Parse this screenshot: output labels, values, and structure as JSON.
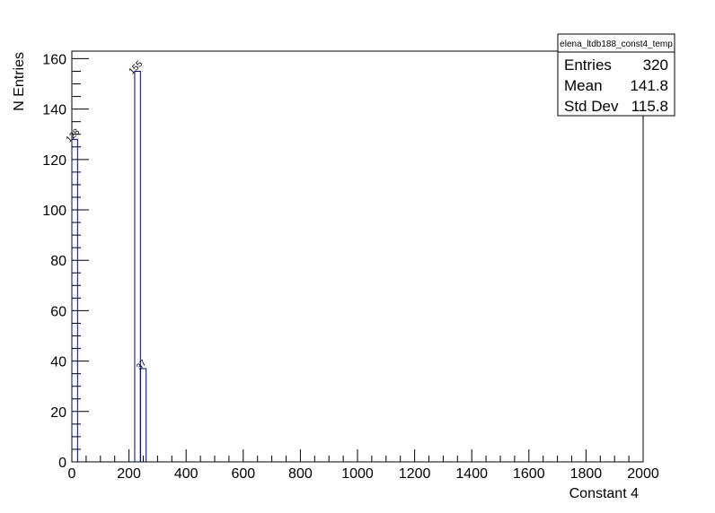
{
  "chart_data": {
    "type": "bar",
    "title": "",
    "xlabel": "Constant 4",
    "ylabel": "N Entries",
    "xlim": [
      0,
      2000
    ],
    "ylim": [
      0,
      163
    ],
    "x_ticks": [
      0,
      200,
      400,
      600,
      800,
      1000,
      1200,
      1400,
      1600,
      1800,
      2000
    ],
    "y_ticks": [
      0,
      20,
      40,
      60,
      80,
      100,
      120,
      140,
      160
    ],
    "bin_width": 20,
    "bins": [
      {
        "x_low": 0,
        "x_high": 20,
        "value": 128
      },
      {
        "x_low": 220,
        "x_high": 240,
        "value": 155
      },
      {
        "x_low": 240,
        "x_high": 260,
        "value": 37
      }
    ],
    "bar_labels": [
      "128",
      "155",
      "37"
    ],
    "bar_color": "#000099",
    "stats_box": {
      "title": "elena_ltdb188_const4_temp",
      "rows": [
        {
          "label": "Entries",
          "value": "320"
        },
        {
          "label": "Mean",
          "value": "141.8"
        },
        {
          "label": "Std Dev",
          "value": "115.8"
        }
      ]
    }
  }
}
